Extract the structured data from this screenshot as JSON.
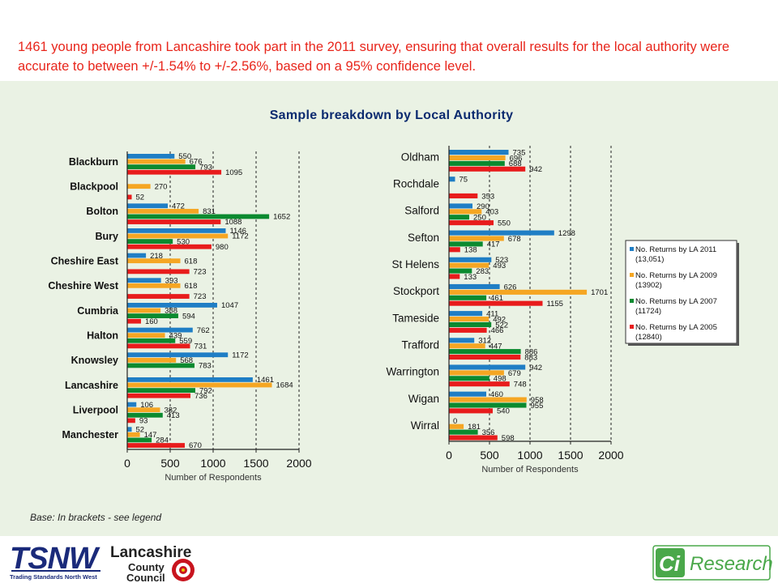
{
  "intro": "1461 young people from Lancashire took part in the 2011 survey, ensuring that overall results for the local authority were accurate to between +/-1.54% to +/-2.56%, based on a 95% confidence level.",
  "title": "Sample breakdown by Local Authority",
  "footnote": "Base: In brackets - see legend",
  "colors": {
    "lab2011": "#1f7ec5",
    "lab2009": "#f5a623",
    "lab2007": "#0b8a2f",
    "lab2005": "#e81c1c"
  },
  "legend": [
    "No. Returns by LA 2011 (13,051)",
    "No. Returns by LA 2009 (13902)",
    "No. Returns by LA 2007 (11724)",
    "No. Returns by LA 2005 (12840)"
  ],
  "logos": {
    "tsnw": "TSNW",
    "tsnw_sub": "Trading Standards North West",
    "lancs_1": "Lancashire",
    "lancs_2": "County",
    "lancs_3": "Council",
    "ci": "Ci",
    "research": "Research"
  },
  "chart_data": [
    {
      "type": "bar",
      "orientation": "horizontal",
      "xlabel": "Number of Respondents",
      "xlim": [
        0,
        2000
      ],
      "xticks": [
        0,
        500,
        1000,
        1500,
        2000
      ],
      "categories": [
        "Blackburn",
        "Blackpool",
        "Bolton",
        "Bury",
        "Cheshire East",
        "Cheshire West",
        "Cumbria",
        "Halton",
        "Knowsley",
        "Lancashire",
        "Liverpool",
        "Manchester"
      ],
      "series": [
        {
          "name": "No. Returns by LA 2011 (13,051)",
          "values": [
            550,
            null,
            472,
            1146,
            218,
            393,
            1047,
            762,
            1172,
            1461,
            106,
            52
          ]
        },
        {
          "name": "No. Returns by LA 2009 (13902)",
          "values": [
            676,
            270,
            831,
            1172,
            618,
            618,
            388,
            439,
            568,
            1684,
            382,
            147
          ]
        },
        {
          "name": "No. Returns by LA 2007 (11724)",
          "values": [
            793,
            null,
            1652,
            530,
            null,
            null,
            594,
            559,
            783,
            792,
            413,
            284
          ]
        },
        {
          "name": "No. Returns by LA 2005 (12840)",
          "values": [
            1095,
            52,
            1088,
            980,
            723,
            723,
            160,
            731,
            null,
            736,
            93,
            670
          ]
        }
      ]
    },
    {
      "type": "bar",
      "orientation": "horizontal",
      "xlabel": "Number of Respondents",
      "xlim": [
        0,
        2000
      ],
      "xticks": [
        0,
        500,
        1000,
        1500,
        2000
      ],
      "categories": [
        "Oldham",
        "Rochdale",
        "Salford",
        "Sefton",
        "St Helens",
        "Stockport",
        "Tameside",
        "Trafford",
        "Warrington",
        "Wigan",
        "Wirral"
      ],
      "series": [
        {
          "name": "No. Returns by LA 2011 (13,051)",
          "values": [
            735,
            75,
            290,
            1298,
            523,
            626,
            411,
            312,
            942,
            460,
            0
          ]
        },
        {
          "name": "No. Returns by LA 2009 (13902)",
          "values": [
            696,
            null,
            403,
            678,
            493,
            1701,
            492,
            447,
            679,
            958,
            181
          ]
        },
        {
          "name": "No. Returns by LA 2007 (11724)",
          "values": [
            688,
            null,
            250,
            417,
            283,
            461,
            522,
            886,
            498,
            955,
            356
          ]
        },
        {
          "name": "No. Returns by LA 2005 (12840)",
          "values": [
            942,
            353,
            550,
            138,
            133,
            1155,
            466,
            883,
            748,
            540,
            598
          ]
        }
      ]
    }
  ]
}
